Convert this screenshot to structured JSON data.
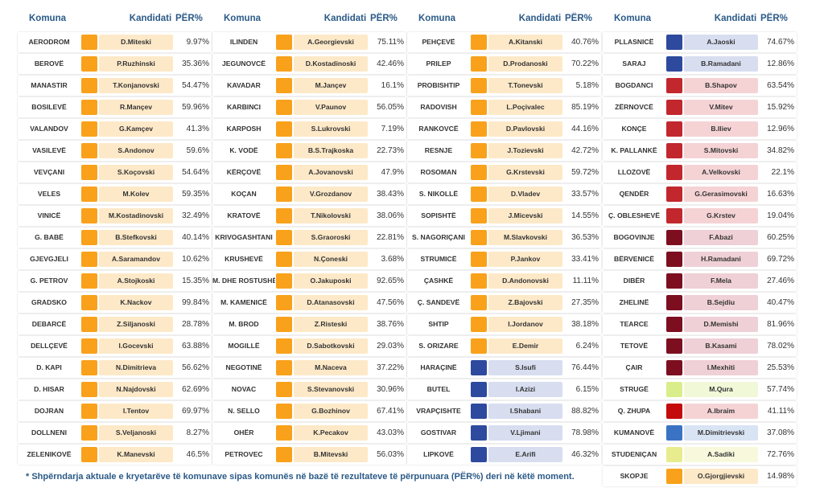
{
  "headers": {
    "komuna": "Komuna",
    "kandidati": "Kandidati",
    "per": "PËR%"
  },
  "top_fragment": "(…)",
  "columns": [
    [
      {
        "komuna": "AERODROM",
        "kandidati": "D.Miteski",
        "per": "9.97%",
        "color": "#f9a11b",
        "bg": "#fde9c8"
      },
      {
        "komuna": "BEROVË",
        "kandidati": "P.Ruzhinski",
        "per": "35.36%",
        "color": "#f9a11b",
        "bg": "#fde9c8"
      },
      {
        "komuna": "MANASTIR",
        "kandidati": "T.Konjanovski",
        "per": "54.47%",
        "color": "#f9a11b",
        "bg": "#fde9c8"
      },
      {
        "komuna": "BOSILEVË",
        "kandidati": "R.Mançev",
        "per": "59.96%",
        "color": "#f9a11b",
        "bg": "#fde9c8"
      },
      {
        "komuna": "VALANDOV",
        "kandidati": "G.Kamçev",
        "per": "41.3%",
        "color": "#f9a11b",
        "bg": "#fde9c8"
      },
      {
        "komuna": "VASILEVË",
        "kandidati": "S.Andonov",
        "per": "59.6%",
        "color": "#f9a11b",
        "bg": "#fde9c8"
      },
      {
        "komuna": "VEVÇANI",
        "kandidati": "S.Koçovski",
        "per": "54.64%",
        "color": "#f9a11b",
        "bg": "#fde9c8"
      },
      {
        "komuna": "VELES",
        "kandidati": "M.Kolev",
        "per": "59.35%",
        "color": "#f9a11b",
        "bg": "#fde9c8"
      },
      {
        "komuna": "VINICË",
        "kandidati": "M.Kostadinovski",
        "per": "32.49%",
        "color": "#f9a11b",
        "bg": "#fde9c8"
      },
      {
        "komuna": "G. BABË",
        "kandidati": "B.Stefkovski",
        "per": "40.14%",
        "color": "#f9a11b",
        "bg": "#fde9c8"
      },
      {
        "komuna": "GJEVGJELI",
        "kandidati": "A.Saramandov",
        "per": "10.62%",
        "color": "#f9a11b",
        "bg": "#fde9c8"
      },
      {
        "komuna": "G. PETROV",
        "kandidati": "A.Stojkoski",
        "per": "15.35%",
        "color": "#f9a11b",
        "bg": "#fde9c8"
      },
      {
        "komuna": "GRADSKO",
        "kandidati": "K.Nackov",
        "per": "99.84%",
        "color": "#f9a11b",
        "bg": "#fde9c8"
      },
      {
        "komuna": "DEBARCË",
        "kandidati": "Z.Siljanoski",
        "per": "28.78%",
        "color": "#f9a11b",
        "bg": "#fde9c8"
      },
      {
        "komuna": "DELLÇEVË",
        "kandidati": "I.Gocevski",
        "per": "63.88%",
        "color": "#f9a11b",
        "bg": "#fde9c8"
      },
      {
        "komuna": "D. KAPI",
        "kandidati": "N.Dimitrieva",
        "per": "56.62%",
        "color": "#f9a11b",
        "bg": "#fde9c8"
      },
      {
        "komuna": "D. HISAR",
        "kandidati": "N.Najdovski",
        "per": "62.69%",
        "color": "#f9a11b",
        "bg": "#fde9c8"
      },
      {
        "komuna": "DOJRAN",
        "kandidati": "I.Tentov",
        "per": "69.97%",
        "color": "#f9a11b",
        "bg": "#fde9c8"
      },
      {
        "komuna": "DOLLNENI",
        "kandidati": "S.Veljanoski",
        "per": "8.27%",
        "color": "#f9a11b",
        "bg": "#fde9c8"
      },
      {
        "komuna": "ZELENIKOVË",
        "kandidati": "K.Manevski",
        "per": "46.5%",
        "color": "#f9a11b",
        "bg": "#fde9c8"
      }
    ],
    [
      {
        "komuna": "ILINDEN",
        "kandidati": "A.Georgievski",
        "per": "75.11%",
        "color": "#f9a11b",
        "bg": "#fde9c8"
      },
      {
        "komuna": "JEGUNOVCË",
        "kandidati": "D.Kostadinoski",
        "per": "42.46%",
        "color": "#f9a11b",
        "bg": "#fde9c8"
      },
      {
        "komuna": "KAVADAR",
        "kandidati": "M.Jançev",
        "per": "16.1%",
        "color": "#f9a11b",
        "bg": "#fde9c8"
      },
      {
        "komuna": "KARBINCI",
        "kandidati": "V.Paunov",
        "per": "56.05%",
        "color": "#f9a11b",
        "bg": "#fde9c8"
      },
      {
        "komuna": "KARPOSH",
        "kandidati": "S.Lukrovski",
        "per": "7.19%",
        "color": "#f9a11b",
        "bg": "#fde9c8"
      },
      {
        "komuna": "K. VODË",
        "kandidati": "B.S.Trajkoska",
        "per": "22.73%",
        "color": "#f9a11b",
        "bg": "#fde9c8"
      },
      {
        "komuna": "KËRÇOVË",
        "kandidati": "A.Jovanovski",
        "per": "47.9%",
        "color": "#f9a11b",
        "bg": "#fde9c8"
      },
      {
        "komuna": "KOÇAN",
        "kandidati": "V.Grozdanov",
        "per": "38.43%",
        "color": "#f9a11b",
        "bg": "#fde9c8"
      },
      {
        "komuna": "KRATOVË",
        "kandidati": "T.Nikolovski",
        "per": "38.06%",
        "color": "#f9a11b",
        "bg": "#fde9c8"
      },
      {
        "komuna": "KRIVOGASHTANI",
        "kandidati": "S.Graoroski",
        "per": "22.81%",
        "color": "#f9a11b",
        "bg": "#fde9c8"
      },
      {
        "komuna": "KRUSHEVË",
        "kandidati": "N.Çoneski",
        "per": "3.68%",
        "color": "#f9a11b",
        "bg": "#fde9c8"
      },
      {
        "komuna": "M. DHE ROSTUSHË",
        "kandidati": "O.Jakuposki",
        "per": "92.65%",
        "color": "#f9a11b",
        "bg": "#fde9c8"
      },
      {
        "komuna": "M. KAMENICË",
        "kandidati": "D.Atanasovski",
        "per": "47.56%",
        "color": "#f9a11b",
        "bg": "#fde9c8"
      },
      {
        "komuna": "M. BROD",
        "kandidati": "Z.Risteski",
        "per": "38.76%",
        "color": "#f9a11b",
        "bg": "#fde9c8"
      },
      {
        "komuna": "MOGILLË",
        "kandidati": "D.Sabotkovski",
        "per": "29.03%",
        "color": "#f9a11b",
        "bg": "#fde9c8"
      },
      {
        "komuna": "NEGOTINË",
        "kandidati": "M.Naceva",
        "per": "37.22%",
        "color": "#f9a11b",
        "bg": "#fde9c8"
      },
      {
        "komuna": "NOVAC",
        "kandidati": "S.Stevanovski",
        "per": "30.96%",
        "color": "#f9a11b",
        "bg": "#fde9c8"
      },
      {
        "komuna": "N. SELLO",
        "kandidati": "G.Bozhinov",
        "per": "67.41%",
        "color": "#f9a11b",
        "bg": "#fde9c8"
      },
      {
        "komuna": "OHËR",
        "kandidati": "K.Pecakov",
        "per": "43.03%",
        "color": "#f9a11b",
        "bg": "#fde9c8"
      },
      {
        "komuna": "PETROVEC",
        "kandidati": "B.Mitevski",
        "per": "56.03%",
        "color": "#f9a11b",
        "bg": "#fde9c8"
      }
    ],
    [
      {
        "komuna": "PEHÇEVË",
        "kandidati": "A.Kitanski",
        "per": "40.76%",
        "color": "#f9a11b",
        "bg": "#fde9c8"
      },
      {
        "komuna": "PRILEP",
        "kandidati": "D.Prodanoski",
        "per": "70.22%",
        "color": "#f9a11b",
        "bg": "#fde9c8"
      },
      {
        "komuna": "PROBISHTIP",
        "kandidati": "T.Tonevski",
        "per": "5.18%",
        "color": "#f9a11b",
        "bg": "#fde9c8"
      },
      {
        "komuna": "RADOVISH",
        "kandidati": "L.Poçivalec",
        "per": "85.19%",
        "color": "#f9a11b",
        "bg": "#fde9c8"
      },
      {
        "komuna": "RANKOVCË",
        "kandidati": "D.Pavlovski",
        "per": "44.16%",
        "color": "#f9a11b",
        "bg": "#fde9c8"
      },
      {
        "komuna": "RESNJE",
        "kandidati": "J.Tozievski",
        "per": "42.72%",
        "color": "#f9a11b",
        "bg": "#fde9c8"
      },
      {
        "komuna": "ROSOMAN",
        "kandidati": "G.Krstevski",
        "per": "59.72%",
        "color": "#f9a11b",
        "bg": "#fde9c8"
      },
      {
        "komuna": "S. NIKOLLË",
        "kandidati": "D.Vladev",
        "per": "33.57%",
        "color": "#f9a11b",
        "bg": "#fde9c8"
      },
      {
        "komuna": "SOPISHTË",
        "kandidati": "J.Micevski",
        "per": "14.55%",
        "color": "#f9a11b",
        "bg": "#fde9c8"
      },
      {
        "komuna": "S. NAGORIÇANI",
        "kandidati": "M.Slavkovski",
        "per": "36.53%",
        "color": "#f9a11b",
        "bg": "#fde9c8"
      },
      {
        "komuna": "STRUMICË",
        "kandidati": "P.Jankov",
        "per": "33.41%",
        "color": "#f9a11b",
        "bg": "#fde9c8"
      },
      {
        "komuna": "ÇASHKË",
        "kandidati": "D.Andonovski",
        "per": "11.11%",
        "color": "#f9a11b",
        "bg": "#fde9c8"
      },
      {
        "komuna": "Ç. SANDEVË",
        "kandidati": "Z.Bajovski",
        "per": "27.35%",
        "color": "#f9a11b",
        "bg": "#fde9c8"
      },
      {
        "komuna": "SHTIP",
        "kandidati": "I.Jordanov",
        "per": "38.18%",
        "color": "#f9a11b",
        "bg": "#fde9c8"
      },
      {
        "komuna": "S. ORIZARE",
        "kandidati": "E.Demir",
        "per": "6.24%",
        "color": "#f9a11b",
        "bg": "#fde9c8"
      },
      {
        "komuna": "HARAÇINË",
        "kandidati": "S.Isufi",
        "per": "76.44%",
        "color": "#2e4a9e",
        "bg": "#d8def0"
      },
      {
        "komuna": "BUTEL",
        "kandidati": "I.Azizi",
        "per": "6.15%",
        "color": "#2e4a9e",
        "bg": "#d8def0"
      },
      {
        "komuna": "VRAPÇISHTE",
        "kandidati": "I.Shabani",
        "per": "88.82%",
        "color": "#2e4a9e",
        "bg": "#d8def0"
      },
      {
        "komuna": "GOSTIVAR",
        "kandidati": "V.Ljimani",
        "per": "78.98%",
        "color": "#2e4a9e",
        "bg": "#d8def0"
      },
      {
        "komuna": "LIPKOVË",
        "kandidati": "E.Arifi",
        "per": "46.32%",
        "color": "#2e4a9e",
        "bg": "#d8def0"
      }
    ],
    [
      {
        "komuna": "PLLASNICË",
        "kandidati": "A.Jaoski",
        "per": "74.67%",
        "color": "#2e4a9e",
        "bg": "#d8def0"
      },
      {
        "komuna": "SARAJ",
        "kandidati": "B.Ramadani",
        "per": "12.86%",
        "color": "#2e4a9e",
        "bg": "#d8def0"
      },
      {
        "komuna": "BOGDANCI",
        "kandidati": "B.Shapov",
        "per": "63.54%",
        "color": "#c1272d",
        "bg": "#f5d3d5"
      },
      {
        "komuna": "ZËRNOVCË",
        "kandidati": "V.Mitev",
        "per": "15.92%",
        "color": "#c1272d",
        "bg": "#f5d3d5"
      },
      {
        "komuna": "KONÇE",
        "kandidati": "B.Iliev",
        "per": "12.96%",
        "color": "#c1272d",
        "bg": "#f5d3d5"
      },
      {
        "komuna": "K. PALLANKË",
        "kandidati": "S.Mitovski",
        "per": "34.82%",
        "color": "#c1272d",
        "bg": "#f5d3d5"
      },
      {
        "komuna": "LLOZOVË",
        "kandidati": "A.Velkovski",
        "per": "22.1%",
        "color": "#c1272d",
        "bg": "#f5d3d5"
      },
      {
        "komuna": "QENDËR",
        "kandidati": "G.Gerasimovski",
        "per": "16.63%",
        "color": "#c1272d",
        "bg": "#f5d3d5"
      },
      {
        "komuna": "Ç. OBLESHEVË",
        "kandidati": "G.Krstev",
        "per": "19.04%",
        "color": "#c1272d",
        "bg": "#f5d3d5"
      },
      {
        "komuna": "BOGOVINJE",
        "kandidati": "F.Abazi",
        "per": "60.25%",
        "color": "#7d0e20",
        "bg": "#efd0d6"
      },
      {
        "komuna": "BËRVENICË",
        "kandidati": "H.Ramadani",
        "per": "69.72%",
        "color": "#7d0e20",
        "bg": "#efd0d6"
      },
      {
        "komuna": "DIBËR",
        "kandidati": "F.Mela",
        "per": "27.46%",
        "color": "#7d0e20",
        "bg": "#efd0d6"
      },
      {
        "komuna": "ZHELINË",
        "kandidati": "B.Sejdiu",
        "per": "40.47%",
        "color": "#7d0e20",
        "bg": "#efd0d6"
      },
      {
        "komuna": "TEARCE",
        "kandidati": "D.Memishi",
        "per": "81.96%",
        "color": "#7d0e20",
        "bg": "#efd0d6"
      },
      {
        "komuna": "TETOVË",
        "kandidati": "B.Kasami",
        "per": "78.02%",
        "color": "#7d0e20",
        "bg": "#efd0d6"
      },
      {
        "komuna": "ÇAIR",
        "kandidati": "I.Mexhiti",
        "per": "25.53%",
        "color": "#7d0e20",
        "bg": "#efd0d6"
      },
      {
        "komuna": "STRUGË",
        "kandidati": "M.Qura",
        "per": "57.74%",
        "color": "#d9ee8a",
        "bg": "#f1f8d8"
      },
      {
        "komuna": "Q. ZHUPA",
        "kandidati": "A.Ibraim",
        "per": "41.11%",
        "color": "#c40c0c",
        "bg": "#f5d3d5"
      },
      {
        "komuna": "KUMANOVË",
        "kandidati": "M.Dimitrievski",
        "per": "37.08%",
        "color": "#3b73c4",
        "bg": "#d8e3f3"
      },
      {
        "komuna": "STUDENIÇAN",
        "kandidati": "A.Sadiki",
        "per": "72.76%",
        "color": "#e8ec8e",
        "bg": "#f8f9dc"
      },
      {
        "komuna": "SKOPJE",
        "kandidati": "O.Gjorgjievski",
        "per": "14.98%",
        "color": "#f9a11b",
        "bg": "#fde9c8"
      }
    ]
  ],
  "footnote": "* Shpërndarja aktuale e kryetarëve të komunave sipas komunës në bazë të rezultateve të përpunuara (PËR%) deri në këtë moment."
}
